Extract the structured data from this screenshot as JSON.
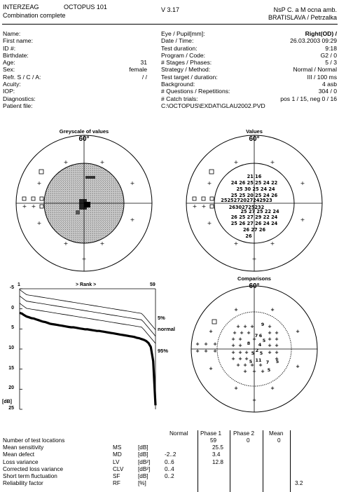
{
  "header": {
    "brand": "INTERZEAG",
    "product": "OCTOPUS 101",
    "version": "V 3.17",
    "subtitle": "Combination complete",
    "institution_line1": "NsP C. a M ocna amb.",
    "institution_line2": "BRATISLAVA / Petrzalka"
  },
  "patient": {
    "labels": [
      "Name:",
      "First name:",
      "ID #:",
      "Birthdate:",
      "Age:",
      "Sex:",
      "Refr. S / C / A:",
      "Acuity:",
      "IOP:",
      "Diagnostics:",
      "Patient file:"
    ],
    "values": [
      "",
      "",
      "",
      "",
      "31",
      "female",
      "/  /",
      "",
      "",
      "",
      ""
    ]
  },
  "exam": {
    "labels": [
      "Eye / Pupil[mm]:",
      "Date / Time:",
      "Test duration:",
      "Program / Code:",
      "# Stages / Phases:",
      "Strategy / Method:",
      "Test target / duration:",
      "Background:",
      "# Questions / Repetitions:",
      "# Catch trials:"
    ],
    "values": [
      "Right(OD) /",
      "26.03.2003  09:29",
      "9:18",
      "G2 / 0",
      "5 / 3",
      "Normal / Normal",
      "III / 100 ms",
      "4 asb",
      "304 / 0",
      "pos 1 / 15, neg 0 / 16"
    ],
    "path": "C:\\OCTOPUS\\EXDAT\\GLAU2002.PVD"
  },
  "plots": {
    "greyscale_title": "Greyscale of values",
    "values_title": "Values",
    "comparisons_title": "Comparisons",
    "degree_label": "60°"
  },
  "values_map": {
    "rows": [
      "21    16",
      "24 26 25 25 24 22",
      "25 30 25 24 24",
      "25 25 20 25 24 26",
      "2525272027242923",
      "26302725232",
      "25 27 25 22 24",
      "26 25 27 29 22 24",
      "25 26 27 26 24 24",
      "26 27 26",
      "26"
    ]
  },
  "comparisons_map": {
    "labels": [
      "9",
      "7",
      "6",
      "5",
      "8",
      "4",
      "5",
      "2",
      "5",
      "11",
      "5",
      "7",
      "5",
      "5"
    ]
  },
  "curve": {
    "rank_start": "1",
    "rank_label": "> Rank >",
    "rank_end": "59",
    "y_ticks": [
      "-5",
      "0",
      "5",
      "10",
      "15",
      "20",
      "25"
    ],
    "y_unit": "[dB]",
    "labels": {
      "p5": "5%",
      "normal": "normal",
      "p95": "95%"
    },
    "ylim": [
      -5,
      25
    ],
    "xlim": [
      1,
      59
    ],
    "series_measured": [
      1.0,
      1.2,
      1.6,
      1.9,
      2.1,
      2.3,
      2.4,
      2.6,
      2.8,
      3.0,
      3.2,
      3.3,
      3.5,
      3.7,
      3.8,
      3.9,
      4.0,
      4.1,
      4.2,
      4.3,
      4.4,
      4.5,
      4.6,
      4.6,
      4.7,
      4.8,
      4.9,
      5.0,
      5.1,
      5.1,
      5.2,
      5.3,
      5.4,
      5.5,
      5.5,
      5.6,
      5.7,
      5.8,
      5.9,
      6.0,
      6.1,
      6.2,
      6.3,
      6.4,
      6.5,
      6.6,
      6.7,
      6.8,
      6.9,
      7.0,
      7.2,
      7.3,
      7.5,
      7.7,
      8.0,
      8.5,
      9.5,
      13.0,
      24.0
    ]
  },
  "stats": {
    "headers": [
      "Normal",
      "Phase 1",
      "Phase 2",
      "Mean"
    ],
    "count_label": "Number of test locations",
    "count_values": [
      "59",
      "0",
      "0"
    ],
    "rows": [
      {
        "name": "Mean sensitivity",
        "abbr": "MS",
        "unit": "[dB]",
        "normal": "",
        "p1": "25.5",
        "p2": "",
        "mean": ""
      },
      {
        "name": "Mean defect",
        "abbr": "MD",
        "unit": "[dB]",
        "normal": "-2..2",
        "p1": "3.4",
        "p2": "",
        "mean": ""
      },
      {
        "name": "Loss variance",
        "abbr": "LV",
        "unit": "[dB²]",
        "normal": "0..6",
        "p1": "12.8",
        "p2": "",
        "mean": ""
      },
      {
        "name": "Corrected loss variance",
        "abbr": "CLV",
        "unit": "[dB²]",
        "normal": "0..4",
        "p1": "",
        "p2": "",
        "mean": ""
      },
      {
        "name": "Short term fluctuation",
        "abbr": "SF",
        "unit": "[dB]",
        "normal": "0..2",
        "p1": "",
        "p2": "",
        "mean": ""
      },
      {
        "name": "Reliability factor",
        "abbr": "RF",
        "unit": "[%]",
        "normal": "",
        "p1": "",
        "p2": "",
        "mean": "3.2"
      }
    ]
  }
}
